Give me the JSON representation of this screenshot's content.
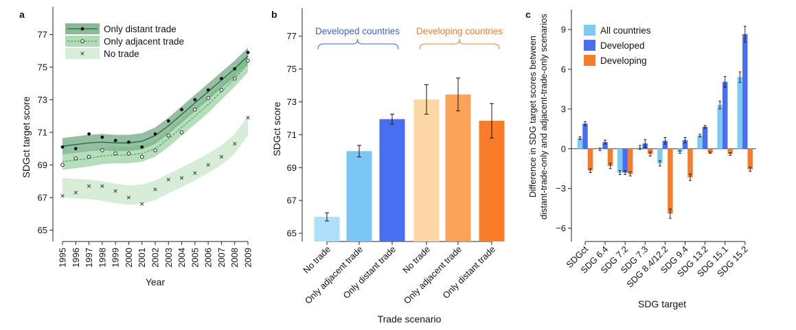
{
  "chart_data": [
    {
      "panel": "a",
      "type": "line",
      "xlabel": "Year",
      "ylabel": "SDGct target score",
      "ylim": [
        64.3,
        78.7
      ],
      "yticks": [
        65,
        67,
        69,
        71,
        73,
        75,
        77
      ],
      "x": [
        1995,
        1996,
        1997,
        1998,
        1999,
        2000,
        2001,
        2002,
        2003,
        2004,
        2005,
        2006,
        2007,
        2008,
        2009
      ],
      "colors": {
        "distant": "#2e7d46",
        "adjacent": "#6dbb7a",
        "none": "#a8d8a6"
      },
      "series": [
        {
          "name": "Only distant trade",
          "key": "distant",
          "points": [
            70.1,
            70.0,
            70.9,
            70.7,
            70.5,
            70.4,
            70.1,
            70.9,
            71.7,
            72.4,
            73.0,
            73.6,
            74.3,
            74.9,
            75.9
          ],
          "trend": [
            70.15,
            70.25,
            70.35,
            70.4,
            70.35,
            70.35,
            70.45,
            70.8,
            71.4,
            72.1,
            72.8,
            73.5,
            74.2,
            74.9,
            75.7
          ],
          "band": 0.5
        },
        {
          "name": "Only adjacent trade",
          "key": "adjacent",
          "points": [
            69.0,
            69.4,
            69.5,
            69.9,
            69.7,
            69.7,
            69.5,
            69.9,
            70.8,
            71.0,
            72.4,
            73.1,
            73.6,
            74.3,
            75.4
          ],
          "trend": [
            69.2,
            69.3,
            69.4,
            69.55,
            69.6,
            69.6,
            69.7,
            70.0,
            70.6,
            71.3,
            72.0,
            72.7,
            73.5,
            74.3,
            75.2
          ],
          "band": 0.5
        },
        {
          "name": "No trade",
          "key": "none",
          "points": [
            67.1,
            67.3,
            67.7,
            67.7,
            67.4,
            67.0,
            66.6,
            67.5,
            68.1,
            68.2,
            68.5,
            69.0,
            69.5,
            70.3,
            71.9
          ],
          "trend": [
            67.6,
            67.55,
            67.5,
            67.4,
            67.25,
            67.15,
            67.2,
            67.45,
            67.85,
            68.25,
            68.65,
            69.1,
            69.6,
            70.3,
            71.4
          ],
          "band": 0.6
        }
      ]
    },
    {
      "panel": "b",
      "type": "bar",
      "xlabel": "Trade scenario",
      "ylabel": "SDGct score",
      "ylim": [
        64.5,
        78.7
      ],
      "yticks": [
        65,
        67,
        69,
        71,
        73,
        75,
        77
      ],
      "groups": [
        "Developed countries",
        "Developing countries"
      ],
      "categories": [
        "No trade",
        "Only adjacent trade",
        "Only distant trade",
        "No trade",
        "Only adjacent trade",
        "Only distant trade"
      ],
      "values": [
        66.0,
        70.0,
        71.95,
        73.15,
        73.45,
        71.85
      ],
      "errors": [
        0.25,
        0.35,
        0.3,
        0.9,
        1.0,
        1.05
      ],
      "colors": [
        "#aee0fb",
        "#7cc6f5",
        "#4a6ef0",
        "#fdd7a3",
        "#fca35a",
        "#f97c2a"
      ],
      "group_colors": [
        "#3f61d8",
        "#f47c2c"
      ]
    },
    {
      "panel": "c",
      "type": "bar",
      "xlabel": "SDG target",
      "ylabel": "Difference in SDG target scores between distant-trade-only and adjacent-trade-only scenarios",
      "ylim": [
        -7.0,
        10.5
      ],
      "yticks": [
        -6,
        -3,
        0,
        3,
        6,
        9
      ],
      "categories": [
        "SDGct",
        "SDG 6.4",
        "SDG 7.2",
        "SDG 7.3",
        "SDG 8.4/12.2",
        "SDG 9.4",
        "SDG 13.2",
        "SDG 15.1",
        "SDG 15.2"
      ],
      "series": [
        {
          "name": "All countries",
          "color": "#7fcaf0",
          "values": [
            0.8,
            -0.05,
            -1.8,
            0.1,
            -1.1,
            -0.25,
            1.0,
            3.3,
            5.4
          ],
          "errors": [
            0.1,
            0.1,
            0.15,
            0.15,
            0.2,
            0.1,
            0.1,
            0.3,
            0.4
          ]
        },
        {
          "name": "Developed",
          "color": "#4a6ef0",
          "values": [
            1.9,
            0.5,
            -1.8,
            0.4,
            0.6,
            0.65,
            1.65,
            5.05,
            8.65
          ],
          "errors": [
            0.15,
            0.15,
            0.15,
            0.3,
            0.25,
            0.2,
            0.1,
            0.4,
            0.6
          ]
        },
        {
          "name": "Developing",
          "color": "#f47c2c",
          "values": [
            -1.65,
            -1.3,
            -1.9,
            -0.4,
            -4.9,
            -2.15,
            -0.3,
            -0.4,
            -1.55
          ],
          "errors": [
            0.15,
            0.2,
            0.15,
            0.15,
            0.35,
            0.25,
            0.05,
            0.1,
            0.15
          ]
        }
      ]
    }
  ]
}
